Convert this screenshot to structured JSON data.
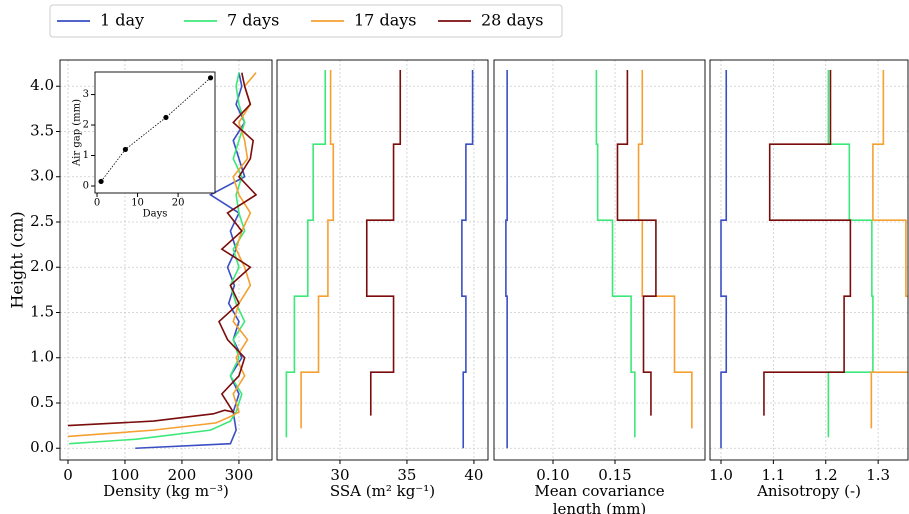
{
  "chart_data": [
    {
      "type": "line",
      "xlabel": "Density (kg m⁻³)",
      "ylabel": "Height (cm)",
      "xlim": [
        -14,
        358
      ],
      "ylim": [
        -0.13,
        4.29
      ],
      "xticks": [
        0,
        100,
        200,
        300
      ],
      "yticks": [
        {
          "value": 0,
          "label": "0.0"
        },
        0.5,
        {
          "value": 1,
          "label": "1.0"
        },
        1.5,
        {
          "value": 2,
          "label": "2.0"
        },
        2.5,
        {
          "value": 3,
          "label": "3.0"
        },
        3.5,
        {
          "value": 4,
          "label": "4.0"
        }
      ],
      "grid": true,
      "series": [
        {
          "name": "1 day",
          "color": "#3a4fc4",
          "x": [
            118,
            285,
            295,
            290,
            300,
            285,
            305,
            290,
            300,
            282,
            292,
            280,
            295,
            285,
            300,
            250,
            310,
            300,
            290,
            310,
            295,
            305,
            300
          ],
          "y": [
            0,
            0.05,
            0.2,
            0.4,
            0.6,
            0.8,
            1.0,
            1.2,
            1.4,
            1.6,
            1.8,
            2.0,
            2.2,
            2.4,
            2.6,
            2.8,
            3.0,
            3.2,
            3.4,
            3.6,
            3.8,
            4.0,
            4.15
          ]
        },
        {
          "name": "7 days",
          "color": "#3de87a",
          "x": [
            2,
            120,
            250,
            285,
            295,
            305,
            285,
            300,
            290,
            310,
            295,
            285,
            300,
            290,
            310,
            300,
            295,
            305,
            290,
            300,
            310,
            300,
            295,
            300
          ],
          "y": [
            0.05,
            0.1,
            0.2,
            0.3,
            0.4,
            0.6,
            0.8,
            1.0,
            1.2,
            1.4,
            1.6,
            1.8,
            2.0,
            2.2,
            2.4,
            2.6,
            2.8,
            3.0,
            3.2,
            3.4,
            3.6,
            3.8,
            4.0,
            4.15
          ]
        },
        {
          "name": "17 days",
          "color": "#f5a030",
          "x": [
            0,
            150,
            260,
            285,
            300,
            290,
            310,
            295,
            315,
            290,
            300,
            320,
            310,
            295,
            305,
            320,
            300,
            290,
            315,
            310,
            300,
            320,
            310,
            330
          ],
          "y": [
            0.13,
            0.2,
            0.28,
            0.35,
            0.4,
            0.6,
            0.8,
            1.0,
            1.2,
            1.4,
            1.6,
            1.8,
            2.0,
            2.2,
            2.4,
            2.6,
            2.8,
            3.0,
            3.2,
            3.4,
            3.6,
            3.8,
            4.0,
            4.15
          ]
        },
        {
          "name": "28 days",
          "color": "#7a0c0c",
          "x": [
            0,
            150,
            255,
            275,
            290,
            270,
            300,
            310,
            280,
            265,
            300,
            285,
            320,
            270,
            305,
            280,
            330,
            300,
            320,
            325,
            290,
            320,
            310,
            305
          ],
          "y": [
            0.25,
            0.3,
            0.38,
            0.42,
            0.4,
            0.6,
            0.8,
            1.0,
            1.2,
            1.4,
            1.6,
            1.8,
            2.0,
            2.2,
            2.4,
            2.6,
            2.8,
            3.0,
            3.2,
            3.4,
            3.6,
            3.8,
            4.0,
            4.15
          ]
        }
      ]
    },
    {
      "type": "line",
      "xlabel": "SSA (m² kg⁻¹)",
      "xlim": [
        25.3,
        41.05
      ],
      "ylim": [
        -0.13,
        4.29
      ],
      "xticks": [
        30,
        35,
        40
      ],
      "grid": true,
      "series": [
        {
          "color": "#3a4fc4",
          "x": [
            39.2,
            39.2,
            39.4,
            39.4,
            39.1,
            39.1,
            39.4,
            39.4,
            39.9,
            39.9
          ],
          "y": [
            0,
            0.84,
            0.84,
            1.68,
            1.68,
            2.52,
            2.52,
            3.36,
            3.36,
            4.18
          ]
        },
        {
          "color": "#3de87a",
          "x": [
            26.0,
            26.0,
            26.6,
            26.6,
            27.6,
            27.6,
            28.0,
            28.0,
            28.9,
            28.9
          ],
          "y": [
            0.12,
            0.84,
            0.84,
            1.68,
            1.68,
            2.52,
            2.52,
            3.36,
            3.36,
            4.18
          ]
        },
        {
          "color": "#f5a030",
          "x": [
            27.1,
            27.1,
            28.4,
            28.4,
            29.1,
            29.1,
            29.5,
            29.5,
            29.3,
            29.3
          ],
          "y": [
            0.22,
            0.84,
            0.84,
            1.68,
            1.68,
            2.52,
            2.52,
            3.36,
            3.36,
            4.18
          ]
        },
        {
          "color": "#7a0c0c",
          "x": [
            32.3,
            32.3,
            34.0,
            34.0,
            32.0,
            32.0,
            34.0,
            34.0,
            34.5,
            34.5
          ],
          "y": [
            0.36,
            0.84,
            0.84,
            1.68,
            1.68,
            2.52,
            2.52,
            3.36,
            3.36,
            4.18
          ]
        }
      ]
    },
    {
      "type": "line",
      "xlabel": [
        "Mean covariance",
        "length (mm)"
      ],
      "xlim": [
        0.0524,
        0.2226
      ],
      "ylim": [
        -0.13,
        4.29
      ],
      "xticks": [
        {
          "value": 0.1,
          "label": "0.10"
        },
        0.15
      ],
      "grid": true,
      "series": [
        {
          "color": "#3a4fc4",
          "x": [
            0.063,
            0.063,
            0.063,
            0.063,
            0.062,
            0.062,
            0.063,
            0.063,
            0.063,
            0.063
          ],
          "y": [
            0,
            0.84,
            0.84,
            1.68,
            1.68,
            2.52,
            2.52,
            3.36,
            3.36,
            4.18
          ]
        },
        {
          "color": "#3de87a",
          "x": [
            0.166,
            0.166,
            0.163,
            0.163,
            0.148,
            0.148,
            0.136,
            0.136,
            0.135,
            0.135
          ],
          "y": [
            0.12,
            0.84,
            0.84,
            1.68,
            1.68,
            2.52,
            2.52,
            3.36,
            3.36,
            4.18
          ]
        },
        {
          "color": "#f5a030",
          "x": [
            0.212,
            0.212,
            0.198,
            0.198,
            0.172,
            0.172,
            0.169,
            0.169,
            0.172,
            0.172
          ],
          "y": [
            0.22,
            0.84,
            0.84,
            1.68,
            1.68,
            2.52,
            2.52,
            3.36,
            3.36,
            4.18
          ]
        },
        {
          "color": "#7a0c0c",
          "x": [
            0.179,
            0.179,
            0.173,
            0.173,
            0.183,
            0.183,
            0.152,
            0.152,
            0.16,
            0.16
          ],
          "y": [
            0.36,
            0.84,
            0.84,
            1.68,
            1.68,
            2.52,
            2.52,
            3.36,
            3.36,
            4.18
          ]
        }
      ]
    },
    {
      "type": "line",
      "xlabel": "Anisotropy (-)",
      "xlim": [
        0.979,
        1.357
      ],
      "ylim": [
        -0.13,
        4.29
      ],
      "xticks": [
        {
          "value": 1,
          "label": "1.0"
        },
        1.1,
        1.2,
        1.3
      ],
      "grid": true,
      "series": [
        {
          "color": "#3a4fc4",
          "x": [
            1.0,
            1.0,
            1.01,
            1.01,
            1.0,
            1.0,
            1.01,
            1.01,
            1.01,
            1.01
          ],
          "y": [
            0,
            0.84,
            0.84,
            1.68,
            1.68,
            2.52,
            2.52,
            3.36,
            3.36,
            4.18
          ]
        },
        {
          "color": "#3de87a",
          "x": [
            1.205,
            1.205,
            1.29,
            1.29,
            1.288,
            1.288,
            1.245,
            1.245,
            1.205,
            1.205
          ],
          "y": [
            0.12,
            0.84,
            0.84,
            1.68,
            1.68,
            2.52,
            2.52,
            3.36,
            3.36,
            4.18
          ]
        },
        {
          "color": "#f5a030",
          "x": [
            1.287,
            1.287,
            1.37,
            1.37,
            1.353,
            1.353,
            1.29,
            1.29,
            1.31,
            1.31
          ],
          "y": [
            0.22,
            0.84,
            0.84,
            1.68,
            1.68,
            2.52,
            2.52,
            3.36,
            3.36,
            4.18
          ]
        },
        {
          "color": "#7a0c0c",
          "x": [
            1.082,
            1.082,
            1.235,
            1.235,
            1.247,
            1.247,
            1.093,
            1.093,
            1.209,
            1.209
          ],
          "y": [
            0.36,
            0.84,
            0.84,
            1.68,
            1.68,
            2.52,
            2.52,
            3.36,
            3.36,
            4.18
          ]
        }
      ]
    },
    {
      "type": "line",
      "xlabel": "Days",
      "ylabel": "Air gap (mm)",
      "xlim": [
        -0.5,
        29.1
      ],
      "ylim": [
        -0.23,
        3.74
      ],
      "xticks": [
        0,
        10,
        20
      ],
      "yticks": [
        0,
        1,
        2,
        3
      ],
      "grid": false,
      "linestyle": "dotted",
      "marker": "o",
      "series": [
        {
          "color": "#000000",
          "x": [
            1,
            7,
            17,
            28
          ],
          "y": [
            0.15,
            1.2,
            2.25,
            3.55
          ]
        }
      ]
    }
  ]
}
